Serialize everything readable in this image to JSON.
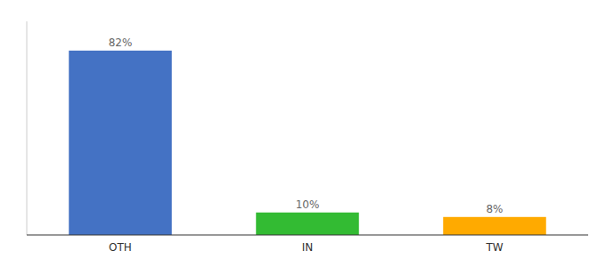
{
  "chart_data": {
    "type": "bar",
    "categories": [
      "OTH",
      "IN",
      "TW"
    ],
    "values": [
      82,
      10,
      8
    ],
    "value_labels": [
      "82%",
      "10%",
      "8%"
    ],
    "data_labels": true,
    "colors": [
      "#4472c4",
      "#33bb33",
      "#ffaa00"
    ],
    "ylim": [
      0,
      95
    ],
    "grid": false,
    "tick_labels": "x"
  }
}
